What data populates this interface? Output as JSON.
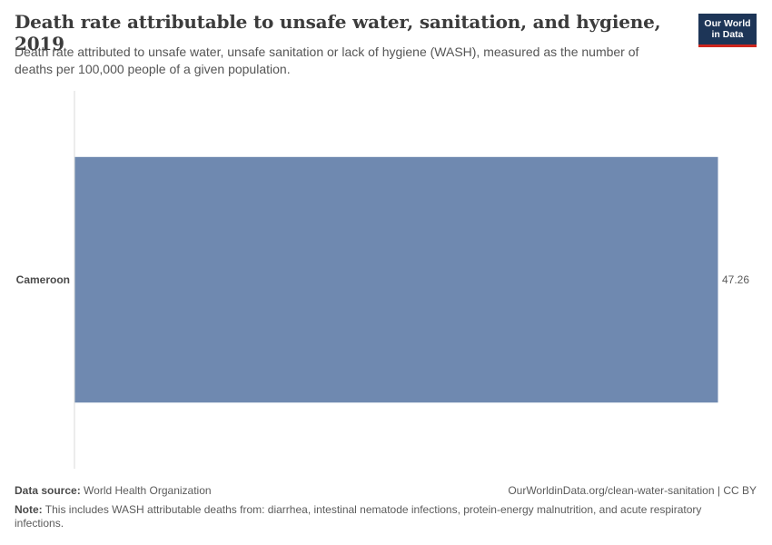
{
  "header": {
    "title": "Death rate attributable to unsafe water, sanitation, and hygiene, 2019",
    "subtitle": "Death rate attributed to unsafe water, unsafe sanitation or lack of hygiene (WASH), measured as the number of deaths per 100,000 people of a given population."
  },
  "logo": {
    "line1": "Our World",
    "line2": "in Data",
    "bg_color": "#1d3557",
    "accent_color": "#ce261e"
  },
  "chart_data": {
    "type": "bar",
    "orientation": "horizontal",
    "title": "Death rate attributable to unsafe water, sanitation, and hygiene, 2019",
    "xlabel": "",
    "ylabel": "",
    "categories": [
      "Cameroon"
    ],
    "values": [
      47.26
    ],
    "value_labels": [
      "47.26"
    ],
    "xlim": [
      0,
      47.26
    ],
    "grid": false,
    "bar_color": "#6f89b0"
  },
  "footer": {
    "source_label": "Data source:",
    "source_value": "World Health Organization",
    "link": "OurWorldinData.org/clean-water-sanitation | CC BY",
    "note_label": "Note:",
    "note_value": "This includes WASH attributable deaths from: diarrhea, intestinal nematode infections, protein-energy malnutrition, and acute respiratory infections."
  }
}
